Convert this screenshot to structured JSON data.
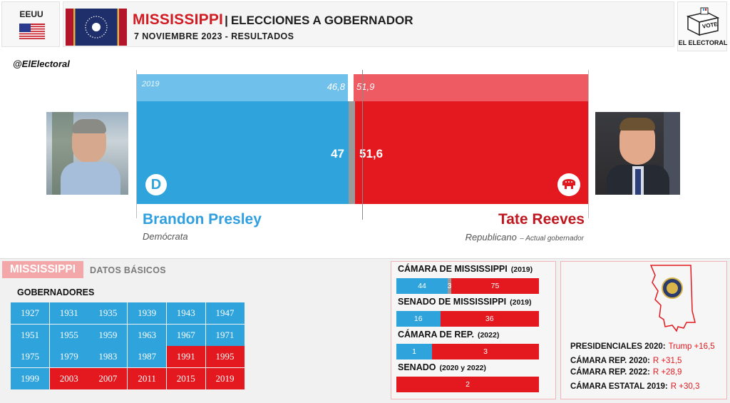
{
  "header": {
    "country": "EEUU",
    "state": "MISSISSIPPI",
    "separator": "|",
    "election": "ELECCIONES A GOBERNADOR",
    "subtitle": "7 NOVIEMBRE 2023 - RESULTADOS",
    "handle": "@ElElectoral",
    "logo_vote": "VOTE",
    "logo_text": "EL ELECTORAL"
  },
  "results": {
    "prev_year": "2019",
    "prev_dem": "46,8",
    "prev_rep": "51,9",
    "dem_pct": "47",
    "rep_pct": "51,6",
    "dem_fraction": 0.47,
    "rep_fraction": 0.516,
    "prev_dem_fraction": 0.468,
    "prev_rep_fraction": 0.519
  },
  "candidates": {
    "dem": {
      "name": "Brandon Presley",
      "party": "Demócrata",
      "badge": "D"
    },
    "rep": {
      "name": "Tate Reeves",
      "party": "Republicano",
      "note": "– Actual gobernador"
    }
  },
  "basics": {
    "state_label": "MISSISSIPPI",
    "section_label": "DATOS BÁSICOS",
    "governors_title": "GOBERNADORES",
    "governors": [
      {
        "year": "1927",
        "party": "D"
      },
      {
        "year": "1931",
        "party": "D"
      },
      {
        "year": "1935",
        "party": "D"
      },
      {
        "year": "1939",
        "party": "D"
      },
      {
        "year": "1943",
        "party": "D"
      },
      {
        "year": "1947",
        "party": "D"
      },
      {
        "year": "1951",
        "party": "D"
      },
      {
        "year": "1955",
        "party": "D"
      },
      {
        "year": "1959",
        "party": "D"
      },
      {
        "year": "1963",
        "party": "D"
      },
      {
        "year": "1967",
        "party": "D"
      },
      {
        "year": "1971",
        "party": "D"
      },
      {
        "year": "1975",
        "party": "D"
      },
      {
        "year": "1979",
        "party": "D"
      },
      {
        "year": "1983",
        "party": "D"
      },
      {
        "year": "1987",
        "party": "D"
      },
      {
        "year": "1991",
        "party": "R"
      },
      {
        "year": "1995",
        "party": "R"
      },
      {
        "year": "1999",
        "party": "D"
      },
      {
        "year": "2003",
        "party": "R"
      },
      {
        "year": "2007",
        "party": "R"
      },
      {
        "year": "2011",
        "party": "R"
      },
      {
        "year": "2015",
        "party": "R"
      },
      {
        "year": "2019",
        "party": "R"
      }
    ]
  },
  "chambers": [
    {
      "title": "CÁMARA DE MISSISSIPPI",
      "year": "(2019)",
      "dem": 44,
      "ind": 3,
      "rep": 75
    },
    {
      "title": "SENADO DE MISSISSIPPI",
      "year": "(2019)",
      "dem": 16,
      "ind": 0,
      "rep": 36
    },
    {
      "title": "CÁMARA DE REP.",
      "year": "(2022)",
      "dem": 1,
      "ind": 0,
      "rep": 3
    },
    {
      "title": "SENADO",
      "year": "(2020 y 2022)",
      "dem": 0,
      "ind": 0,
      "rep": 2
    }
  ],
  "stats": [
    {
      "label": "PRESIDENCIALES 2020:",
      "value": "Trump +16,5"
    },
    {
      "label": "CÁMARA REP. 2020:",
      "value": "R +31,5"
    },
    {
      "label": "CÁMARA REP. 2022:",
      "value": "R +28,9"
    },
    {
      "label": "CÁMARA ESTATAL 2019:",
      "value": "R +30,3"
    }
  ],
  "colors": {
    "dem": "#2ea3dc",
    "rep": "#e3191f",
    "dem_prev": "#6fc0ea",
    "rep_prev": "#ef5b63"
  }
}
